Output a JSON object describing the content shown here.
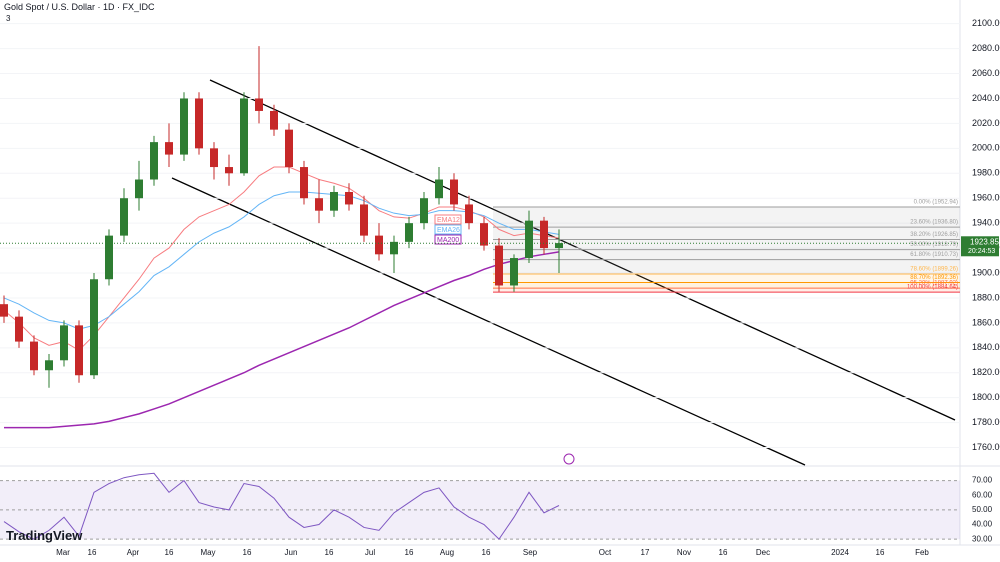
{
  "header": {
    "symbol": "Gold Spot / U.S. Dollar · 1D · FX_IDC",
    "indicator_count": "3"
  },
  "brand": "TradingView",
  "chart_data": [
    {
      "type": "candlestick",
      "candles": {
        "open": [
          1875,
          1865,
          1845,
          1822,
          1830,
          1858,
          1818,
          1895,
          1930,
          1960,
          1975,
          2005,
          1995,
          2040,
          2000,
          1985,
          1980,
          2040,
          2030,
          2015,
          1985,
          1960,
          1950,
          1965,
          1955,
          1930,
          1915,
          1925,
          1940,
          1960,
          1975,
          1955,
          1940,
          1922,
          1890,
          1912,
          1942,
          1920
        ],
        "high": [
          1882,
          1870,
          1850,
          1835,
          1862,
          1862,
          1900,
          1935,
          1968,
          1990,
          2010,
          2020,
          2045,
          2045,
          2005,
          1995,
          2045,
          2082,
          2035,
          2020,
          1990,
          1975,
          1970,
          1972,
          1962,
          1940,
          1930,
          1945,
          1965,
          1985,
          1980,
          1962,
          1945,
          1928,
          1915,
          1950,
          1945,
          1935
        ],
        "low": [
          1860,
          1840,
          1818,
          1808,
          1825,
          1812,
          1815,
          1890,
          1925,
          1950,
          1970,
          1985,
          1990,
          1995,
          1975,
          1970,
          1978,
          2020,
          2010,
          1980,
          1955,
          1940,
          1945,
          1950,
          1925,
          1910,
          1900,
          1920,
          1935,
          1955,
          1950,
          1935,
          1918,
          1885,
          1885,
          1908,
          1915,
          1900
        ],
        "close": [
          1865,
          1845,
          1822,
          1830,
          1858,
          1818,
          1895,
          1930,
          1960,
          1975,
          2005,
          1995,
          2040,
          2000,
          1985,
          1980,
          2040,
          2030,
          2015,
          1985,
          1960,
          1950,
          1965,
          1955,
          1930,
          1915,
          1925,
          1940,
          1960,
          1975,
          1955,
          1940,
          1922,
          1890,
          1912,
          1942,
          1920,
          1924
        ]
      },
      "up_color": "#2e7d32",
      "down_color": "#c62828",
      "overlays": [
        {
          "name": "EMA12",
          "color": "#f77c80",
          "values": [
            1870,
            1860,
            1848,
            1842,
            1845,
            1838,
            1850,
            1865,
            1880,
            1895,
            1912,
            1920,
            1935,
            1945,
            1950,
            1955,
            1965,
            1978,
            1985,
            1985,
            1980,
            1975,
            1972,
            1968,
            1960,
            1950,
            1945,
            1944,
            1948,
            1953,
            1953,
            1950,
            1945,
            1935,
            1930,
            1932,
            1930,
            1928
          ]
        },
        {
          "name": "EMA26",
          "color": "#64b5f6",
          "values": [
            1880,
            1875,
            1868,
            1862,
            1860,
            1855,
            1858,
            1865,
            1875,
            1885,
            1898,
            1905,
            1915,
            1925,
            1932,
            1937,
            1945,
            1955,
            1962,
            1965,
            1965,
            1964,
            1963,
            1962,
            1958,
            1952,
            1948,
            1946,
            1947,
            1950,
            1950,
            1949,
            1946,
            1940,
            1935,
            1935,
            1933,
            1931
          ]
        },
        {
          "name": "MA200",
          "color": "#9c27b0",
          "values": [
            1776,
            1776,
            1776,
            1776,
            1777,
            1778,
            1779,
            1781,
            1784,
            1787,
            1791,
            1795,
            1800,
            1805,
            1810,
            1815,
            1820,
            1826,
            1831,
            1836,
            1841,
            1846,
            1851,
            1856,
            1862,
            1868,
            1874,
            1879,
            1884,
            1889,
            1894,
            1898,
            1903,
            1907,
            1910,
            1913,
            1915,
            1917
          ]
        }
      ],
      "fib_levels": [
        {
          "label": "0.00% (1952.94)",
          "value": 1952.94,
          "color": "#9e9e9e"
        },
        {
          "label": "23.60% (1936.80)",
          "value": 1936.8,
          "color": "#9e9e9e"
        },
        {
          "label": "38.20% (1926.85)",
          "value": 1926.85,
          "color": "#9e9e9e"
        },
        {
          "label": "50.00% (1918.79)",
          "value": 1918.79,
          "color": "#9e9e9e"
        },
        {
          "label": "61.80% (1910.73)",
          "value": 1910.73,
          "color": "#9e9e9e"
        },
        {
          "label": "78.60% (1899.26)",
          "value": 1899.26,
          "color": "#ffb74d"
        },
        {
          "label": "88.70% (1892.36)",
          "value": 1892.36,
          "color": "#ff9800"
        },
        {
          "label": "95.20% (1887.92)",
          "value": 1887.92,
          "color": "#ff7043"
        },
        {
          "label": "100.00% (1884.64)",
          "value": 1884.64,
          "color": "#f23645"
        }
      ],
      "last_price": 1923.85,
      "countdown": "20:24:53",
      "last_color": "#2e7d32",
      "ylim": [
        1746,
        2119
      ],
      "yticks": [
        {
          "value": 1760,
          "label": "1760.00"
        },
        {
          "value": 1780,
          "label": "1780.00"
        },
        {
          "value": 1800,
          "label": "1800.00"
        },
        {
          "value": 1820,
          "label": "1820.00"
        },
        {
          "value": 1840,
          "label": "1840.00"
        },
        {
          "value": 1860,
          "label": "1860.00"
        },
        {
          "value": 1880,
          "label": "1880.00"
        },
        {
          "value": 1900,
          "label": "1900.00"
        },
        {
          "value": 1920,
          "label": "1920.00"
        },
        {
          "value": 1940,
          "label": "1940.00"
        },
        {
          "value": 1960,
          "label": "1960.00"
        },
        {
          "value": 1980,
          "label": "1980.00"
        },
        {
          "value": 2000,
          "label": "2000.00"
        },
        {
          "value": 2020,
          "label": "2020.00"
        },
        {
          "value": 2040,
          "label": "2040.00"
        },
        {
          "value": 2060,
          "label": "2060.00"
        },
        {
          "value": 2080,
          "label": "2080.00"
        },
        {
          "value": 2100,
          "label": "2100.00"
        }
      ],
      "xticks": [
        "Mar",
        "16",
        "Apr",
        "16",
        "May",
        "16",
        "Jun",
        "16",
        "Jul",
        "16",
        "Aug",
        "16",
        "Sep",
        "Oct",
        "17",
        "Nov",
        "16",
        "Dec",
        "2024",
        "16",
        "Feb"
      ]
    },
    {
      "type": "line",
      "color": "#7e57c2",
      "values": [
        42,
        35,
        30,
        36,
        45,
        32,
        62,
        68,
        72,
        74,
        75,
        62,
        70,
        55,
        52,
        50,
        68,
        66,
        58,
        45,
        38,
        40,
        50,
        45,
        38,
        36,
        48,
        55,
        62,
        65,
        52,
        45,
        40,
        30,
        45,
        62,
        48,
        53
      ],
      "ylim": [
        26,
        80
      ],
      "yticks": [
        {
          "value": 30,
          "label": "30.00"
        },
        {
          "value": 40,
          "label": "40.00"
        },
        {
          "value": 50,
          "label": "50.00"
        },
        {
          "value": 60,
          "label": "60.00"
        },
        {
          "value": 70,
          "label": "70.00"
        }
      ]
    }
  ]
}
